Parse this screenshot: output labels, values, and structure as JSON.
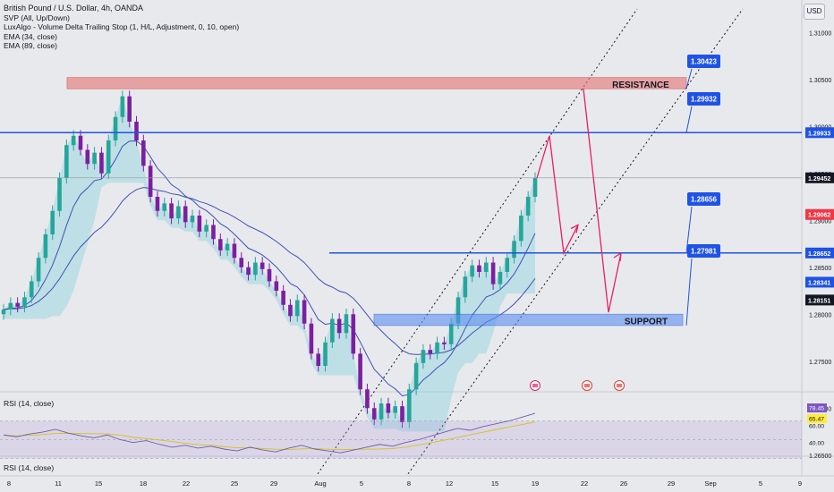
{
  "legend": {
    "title": "British Pound / U.S. Dollar, 4h, OANDA",
    "lines": [
      "SVP (All, Up/Down)",
      "LuxAlgo - Volume Delta Trailing Stop (1, H/L, Adjustment, 0, 10, open)",
      "EMA (34, close)",
      "EMA (89, close)"
    ]
  },
  "currency": "USD",
  "rsi_title": "RSI (14, close)",
  "rsi2_title": "RSI (14, close)",
  "colors": {
    "up": "#26a69a",
    "down": "#7b1fa2",
    "blue_line": "#1e53e5",
    "resistance_fill": "#e57373",
    "support_fill": "#5b8ff0",
    "arrow": "#e91e63",
    "ema": "#3f51b5",
    "rsi": "#6a5fa8",
    "trail": "#8dd3e0"
  },
  "chart_data": {
    "type": "candlestick",
    "instrument": "British Pound / U.S. Dollar",
    "timeframe": "4h",
    "x_ticks": [
      "8",
      "11",
      "15",
      "18",
      "22",
      "25",
      "29",
      "Aug",
      "5",
      "8",
      "12",
      "15",
      "19",
      "22",
      "26",
      "29",
      "Sep",
      "5",
      "9"
    ],
    "y_ticks": [
      "1.31000",
      "1.30500",
      "1.30000",
      "1.29500",
      "1.29000",
      "1.28500",
      "1.28000",
      "1.27500",
      "1.27000",
      "1.26500"
    ],
    "ylim": [
      1.262,
      1.313
    ],
    "price_labels": [
      {
        "value": "1.29933",
        "price": 1.29933,
        "bg": "#1e53e5",
        "fg": "#ffffff"
      },
      {
        "value": "1.29452",
        "price": 1.29452,
        "bg": "#131722",
        "fg": "#ffffff"
      },
      {
        "value": "1.29062",
        "price": 1.29062,
        "bg": "#f23645",
        "fg": "#ffffff"
      },
      {
        "value": "1.28652",
        "price": 1.28652,
        "bg": "#1e53e5",
        "fg": "#ffffff"
      },
      {
        "value": "1.28341",
        "price": 1.28341,
        "bg": "#1e53e5",
        "fg": "#ffffff"
      },
      {
        "value": "1.28151",
        "price": 1.28151,
        "bg": "#131722",
        "fg": "#ffffff"
      }
    ],
    "levels": [
      {
        "label": "1.30423",
        "price": 1.30423
      },
      {
        "label": "1.29932",
        "price": 1.29932
      },
      {
        "label": "1.28656",
        "price": 1.28656
      },
      {
        "label": "1.27981",
        "price": 1.27981
      }
    ],
    "zones": [
      {
        "name": "RESISTANCE",
        "top": 1.3052,
        "bottom": 1.304
      },
      {
        "name": "SUPPORT",
        "top": 1.28,
        "bottom": 1.2788
      }
    ],
    "close_series": [
      1.2805,
      1.2812,
      1.2808,
      1.2818,
      1.2835,
      1.286,
      1.2885,
      1.291,
      1.2945,
      1.298,
      1.299,
      1.2975,
      1.296,
      1.2972,
      1.295,
      1.2985,
      1.301,
      1.3032,
      1.3005,
      1.2985,
      1.2958,
      1.2925,
      1.291,
      1.2918,
      1.2902,
      1.2915,
      1.2898,
      1.2905,
      1.2888,
      1.2895,
      1.288,
      1.2868,
      1.2875,
      1.286,
      1.285,
      1.2842,
      1.2855,
      1.2848,
      1.2835,
      1.2825,
      1.281,
      1.2798,
      1.2815,
      1.279,
      1.2758,
      1.2745,
      1.277,
      1.2795,
      1.278,
      1.28,
      1.2758,
      1.272,
      1.27,
      1.2688,
      1.2705,
      1.2695,
      1.2702,
      1.2685,
      1.272,
      1.2748,
      1.2762,
      1.2758,
      1.277,
      1.2768,
      1.279,
      1.2818,
      1.284,
      1.2852,
      1.2845,
      1.2855,
      1.2832,
      1.2845,
      1.286,
      1.2878,
      1.2905,
      1.2925,
      1.2945
    ],
    "forecast_path": [
      1.299,
      1.2865,
      1.2895,
      1.304,
      1.2802,
      1.2865
    ],
    "rsi_values": [
      55,
      53,
      56,
      58,
      61,
      57,
      54,
      52,
      55,
      50,
      47,
      49,
      45,
      42,
      44,
      41,
      43,
      40,
      38,
      42,
      39,
      37,
      41,
      44,
      40,
      38,
      36,
      39,
      42,
      45,
      43,
      47,
      50,
      54,
      58,
      62,
      60,
      64,
      67,
      70,
      74,
      78
    ],
    "rsi_labels": [
      {
        "value": "78.45",
        "bg": "#7e57c2",
        "fg": "#ffffff"
      },
      {
        "value": "65.47",
        "bg": "#ffeb3b",
        "fg": "#131722"
      },
      {
        "value": "60.00",
        "bg": "none",
        "fg": "#131722"
      },
      {
        "value": "40.00",
        "bg": "none",
        "fg": "#131722"
      }
    ]
  }
}
